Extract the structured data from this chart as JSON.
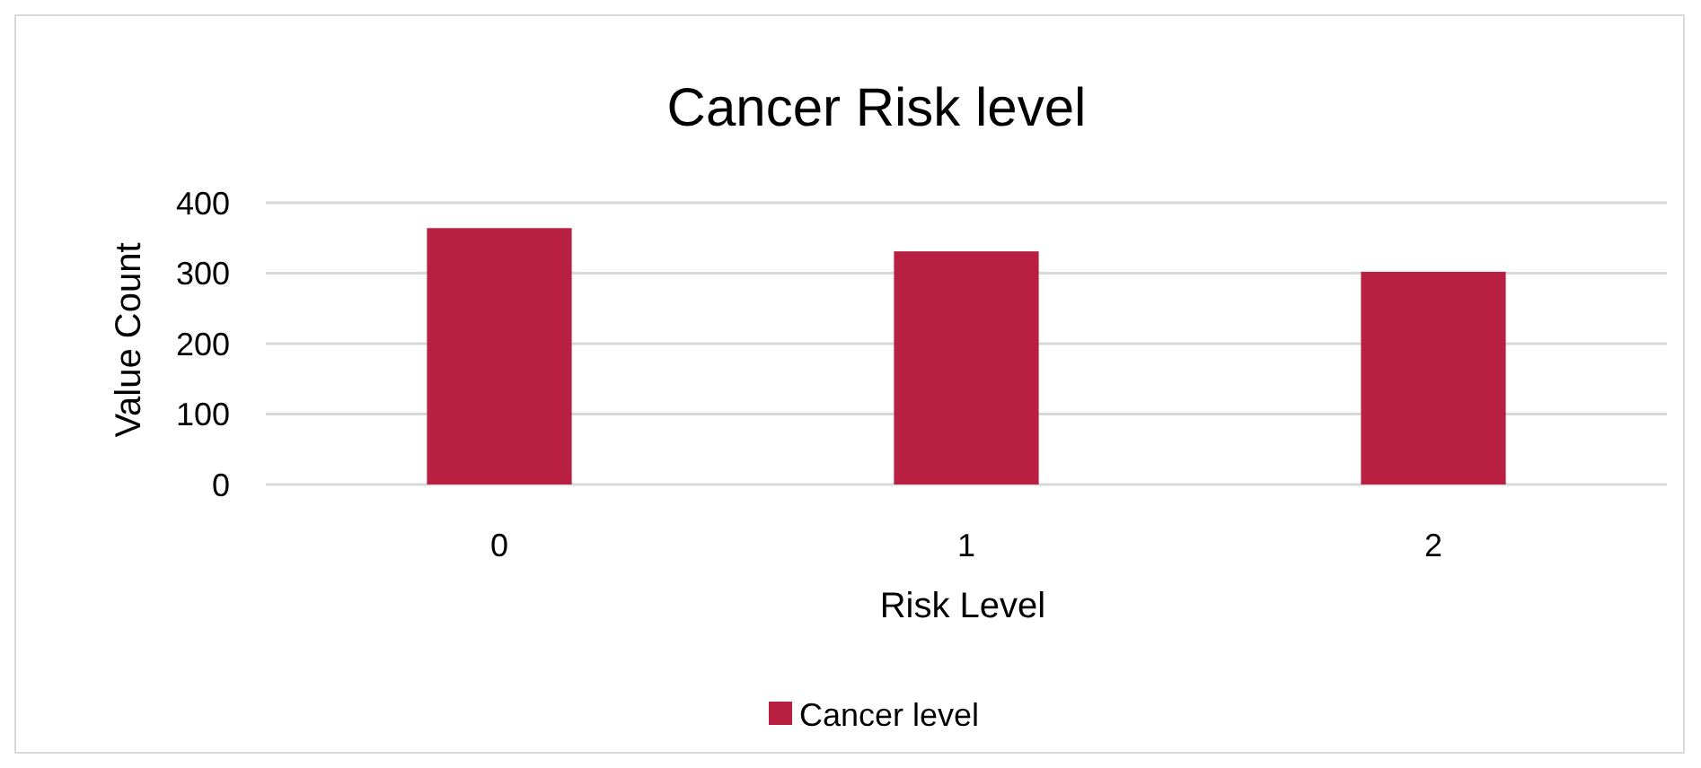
{
  "chart_data": {
    "type": "bar",
    "title": "Cancer Risk level",
    "xlabel": "Risk Level",
    "ylabel": "Value Count",
    "categories": [
      "0",
      "1",
      "2"
    ],
    "series": [
      {
        "name": "Cancer level",
        "color": "#b81f40",
        "values": [
          364,
          331,
          302
        ]
      }
    ],
    "ylim": [
      0,
      400
    ],
    "yticks": [
      0,
      100,
      200,
      300,
      400
    ],
    "grid": "y",
    "legend": "bottom"
  }
}
